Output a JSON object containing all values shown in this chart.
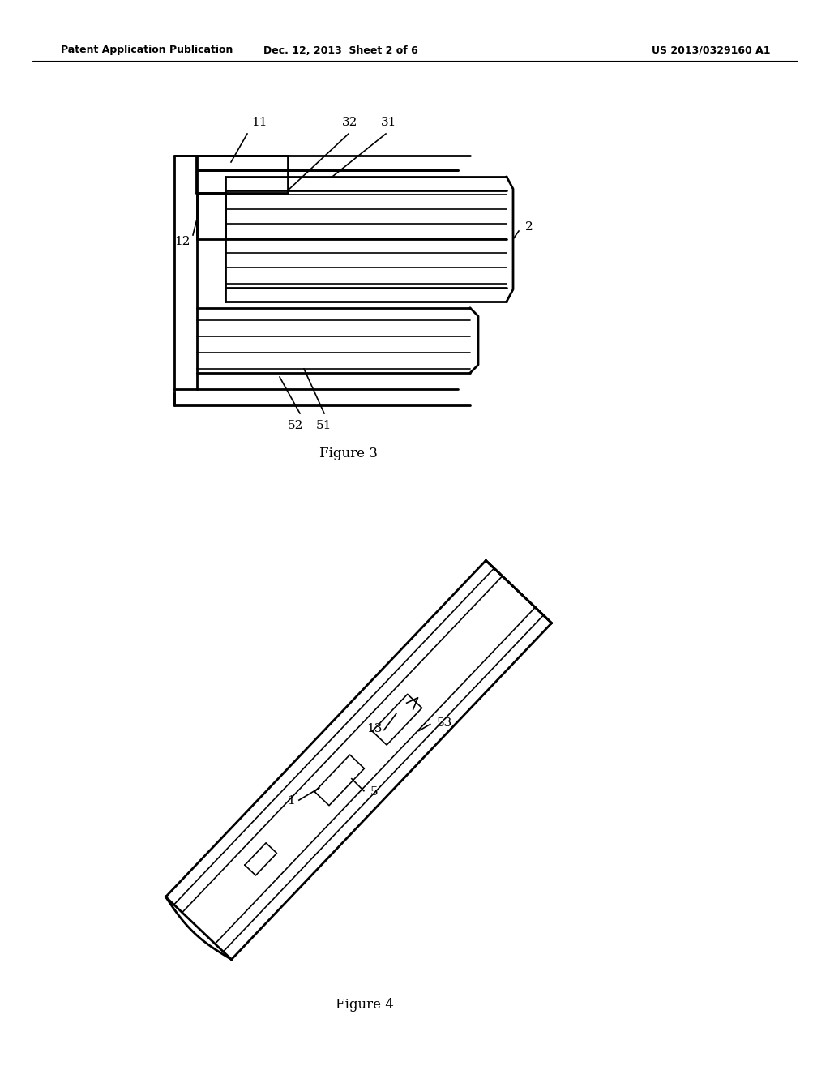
{
  "bg_color": "#ffffff",
  "line_color": "#000000",
  "header_left": "Patent Application Publication",
  "header_center": "Dec. 12, 2013  Sheet 2 of 6",
  "header_right": "US 2013/0329160 A1",
  "fig3_caption": "Figure 3",
  "fig4_caption": "Figure 4"
}
